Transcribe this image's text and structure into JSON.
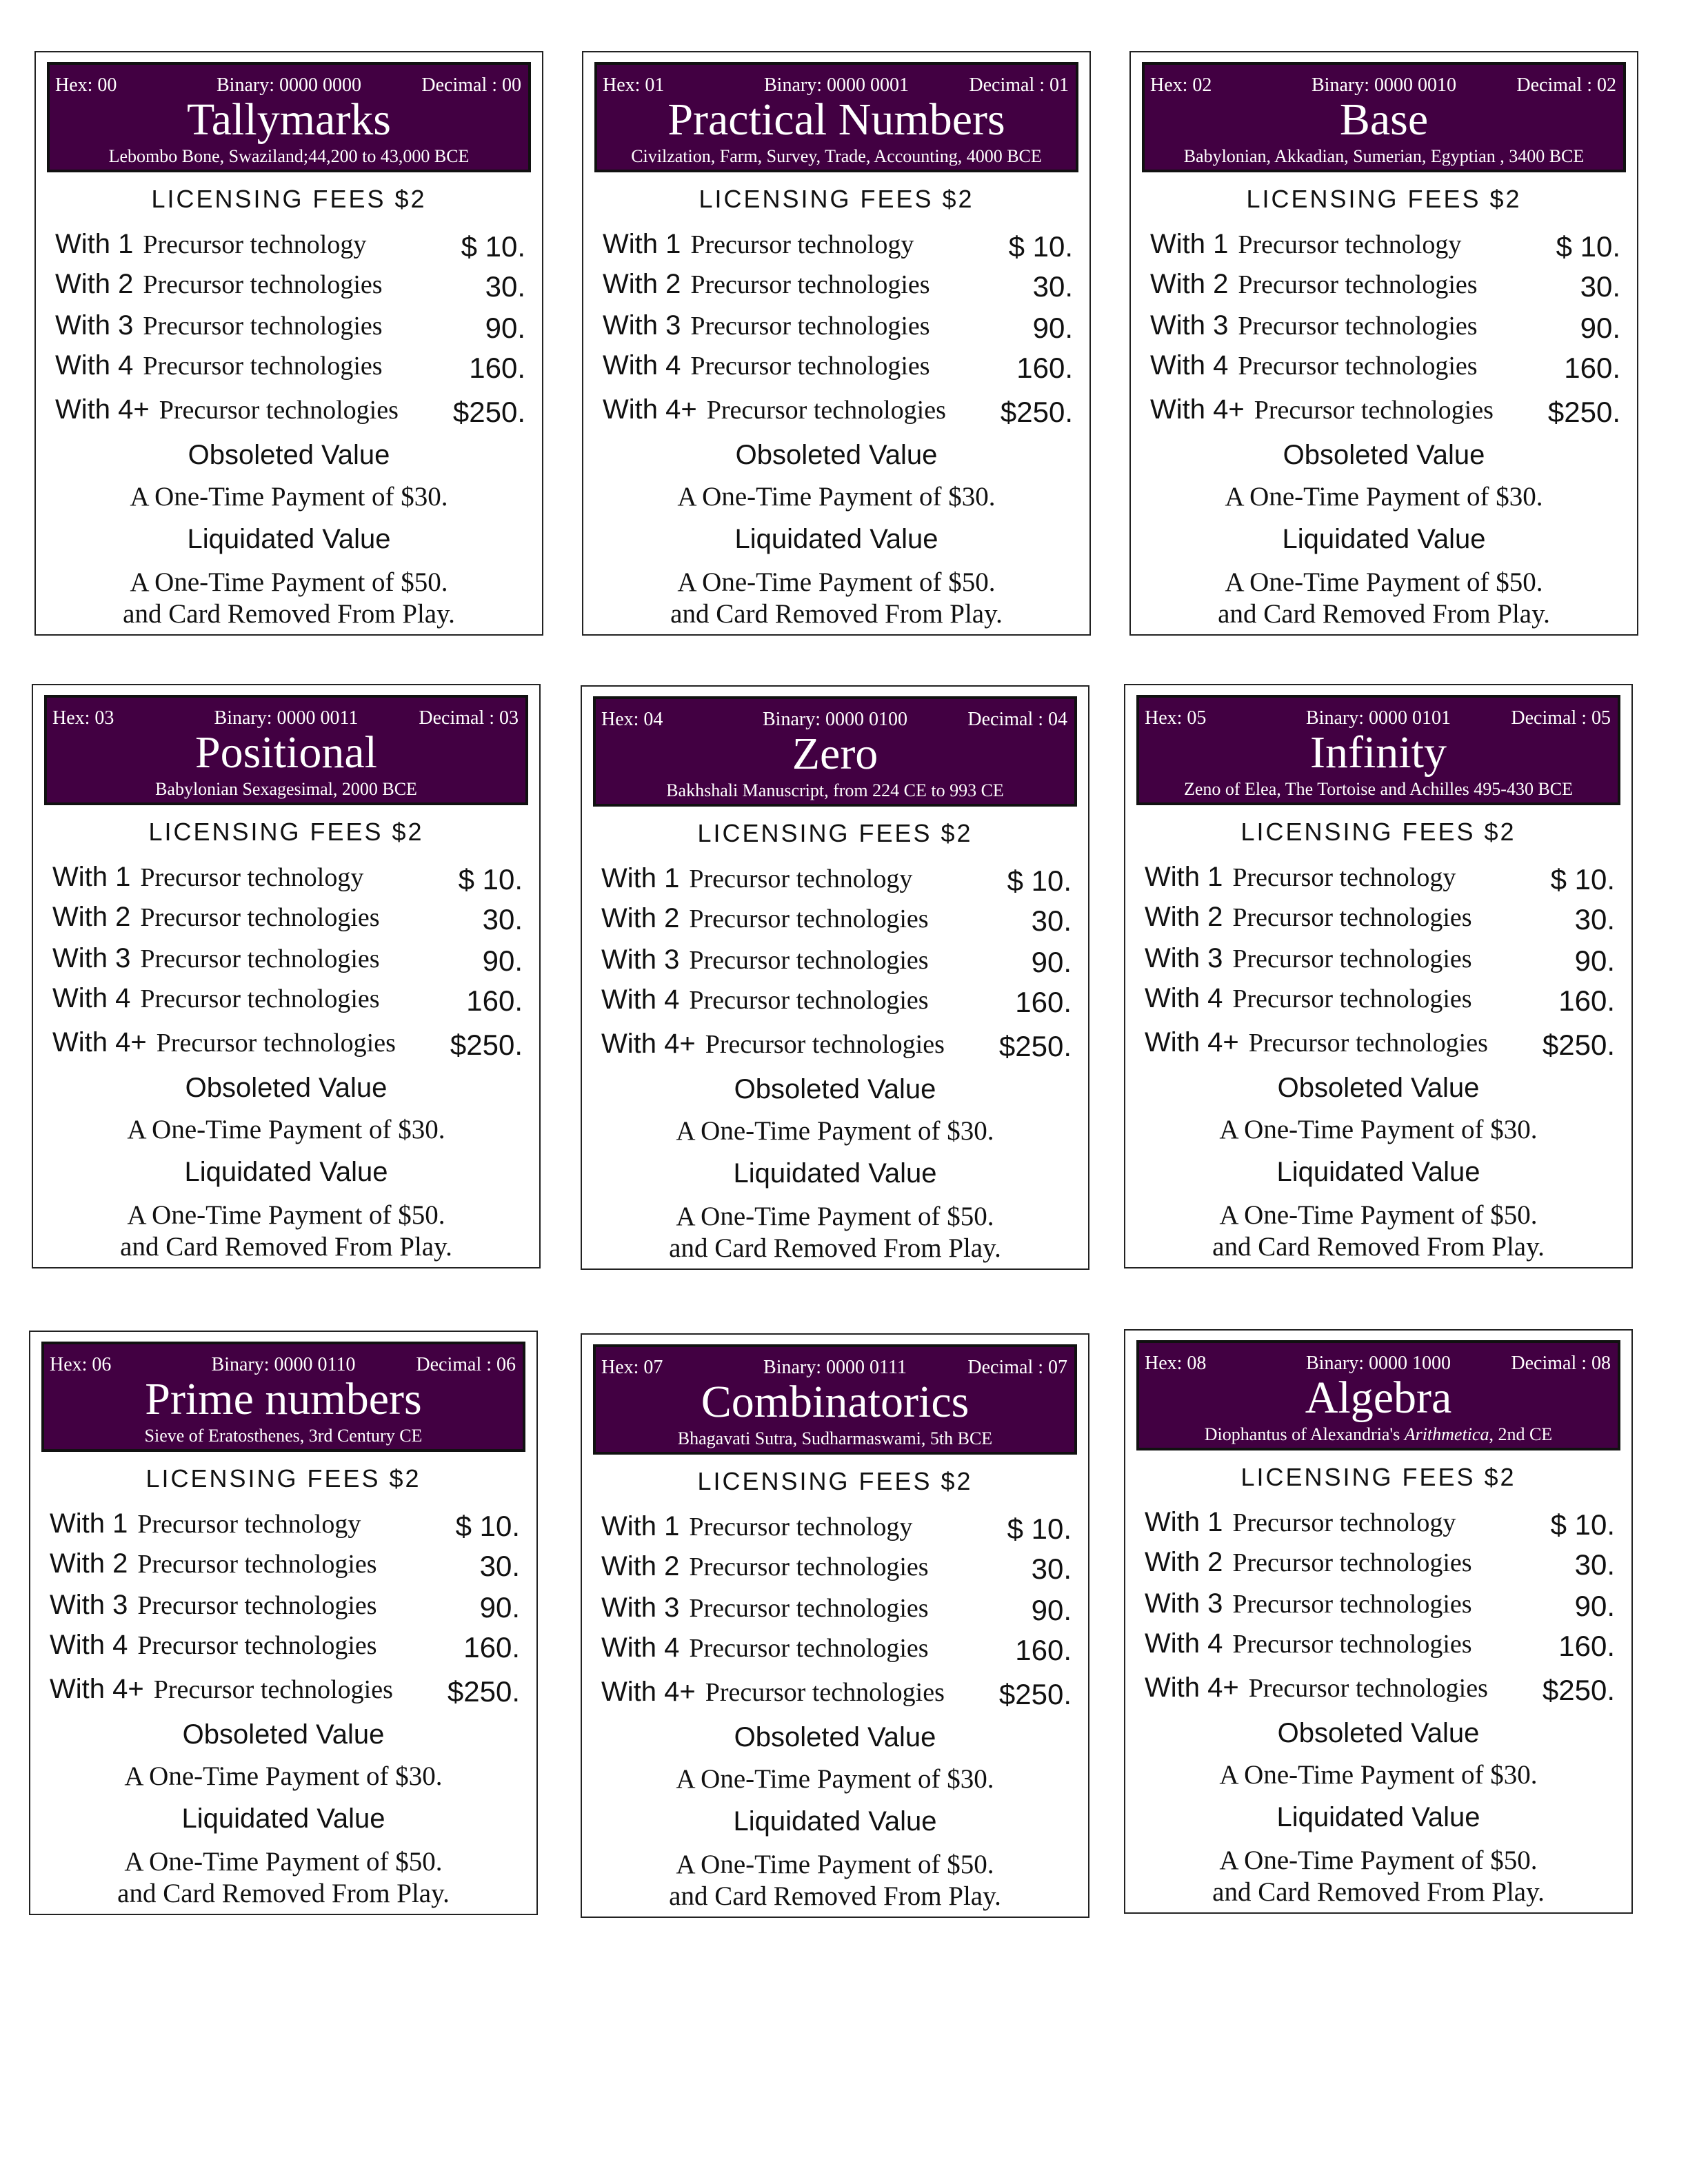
{
  "fees": {
    "licensing_label": "LICENSING  FEES $2",
    "rows": [
      {
        "with": "With 1",
        "label": "Precursor technology",
        "value": "$ 10."
      },
      {
        "with": "With 2",
        "label": "Precursor technologies",
        "value": "30."
      },
      {
        "with": "With 3",
        "label": "Precursor technologies",
        "value": "90."
      },
      {
        "with": "With 4",
        "label": "Precursor technologies",
        "value": "160."
      },
      {
        "with": "With 4+",
        "label": "Precursor technologies",
        "value": "$250."
      }
    ],
    "obsoleted_label": "Obsoleted Value",
    "obsoleted_text": "A One-Time Payment of $30.",
    "liquidated_label": "Liquidated Value",
    "liquidated_text": "A One-Time Payment of $50.",
    "liquidated_text2": "and Card Removed From Play."
  },
  "header_color": "#420042",
  "cards": [
    {
      "hex": "Hex: 00",
      "binary": "Binary: 0000 0000",
      "decimal": "Decimal : 00",
      "title": "Tallymarks",
      "subtitle": "Lebombo Bone, Swaziland;44,200 to 43,000 BCE"
    },
    {
      "hex": "Hex: 01",
      "binary": "Binary: 0000 0001",
      "decimal": "Decimal : 01",
      "title": "Practical Numbers",
      "subtitle": "Civilzation, Farm, Survey, Trade, Accounting, 4000 BCE"
    },
    {
      "hex": "Hex: 02",
      "binary": "Binary: 0000 0010",
      "decimal": "Decimal : 02",
      "title": "Base",
      "subtitle": "Babylonian, Akkadian, Sumerian, Egyptian , 3400 BCE"
    },
    {
      "hex": "Hex: 03",
      "binary": "Binary: 0000 0011",
      "decimal": "Decimal : 03",
      "title": "Positional",
      "subtitle": "Babylonian Sexagesimal, 2000 BCE"
    },
    {
      "hex": "Hex: 04",
      "binary": "Binary: 0000 0100",
      "decimal": "Decimal : 04",
      "title": "Zero",
      "subtitle": "Bakhshali Manuscript, from 224 CE to 993 CE"
    },
    {
      "hex": "Hex: 05",
      "binary": "Binary: 0000 0101",
      "decimal": "Decimal : 05",
      "title": "Infinity",
      "subtitle": "Zeno of Elea, The Tortoise and Achilles 495-430 BCE"
    },
    {
      "hex": "Hex: 06",
      "binary": "Binary: 0000 0110",
      "decimal": "Decimal : 06",
      "title": "Prime numbers",
      "subtitle": "Sieve of Eratosthenes, 3rd Century CE"
    },
    {
      "hex": "Hex: 07",
      "binary": "Binary: 0000 0111",
      "decimal": "Decimal : 07",
      "title": "Combinatorics",
      "subtitle": "Bhagavati Sutra, Sudharmaswami, 5th BCE"
    },
    {
      "hex": "Hex: 08",
      "binary": "Binary: 0000 1000",
      "decimal": "Decimal : 08",
      "title": "Algebra",
      "subtitle": "Diophantus of Alexandria's ",
      "subtitle_italic": "Arithmetica",
      "subtitle_end": ", 2nd CE"
    }
  ]
}
